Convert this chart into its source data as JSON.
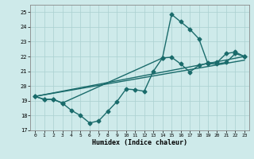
{
  "xlabel": "Humidex (Indice chaleur)",
  "xlim": [
    -0.5,
    23.5
  ],
  "ylim": [
    17,
    25.5
  ],
  "yticks": [
    17,
    18,
    19,
    20,
    21,
    22,
    23,
    24,
    25
  ],
  "xticks": [
    0,
    1,
    2,
    3,
    4,
    5,
    6,
    7,
    8,
    9,
    10,
    11,
    12,
    13,
    14,
    15,
    16,
    17,
    18,
    19,
    20,
    21,
    22,
    23
  ],
  "bg_color": "#ceeaea",
  "grid_color": "#aad0d0",
  "line_color": "#1a6b6b",
  "line1_x": [
    0,
    1,
    2,
    3,
    4,
    5,
    6,
    7,
    8,
    9,
    10,
    11,
    12,
    13,
    14,
    15,
    16,
    17,
    18,
    19,
    20,
    21,
    22,
    23
  ],
  "line1_y": [
    19.3,
    19.1,
    19.1,
    18.85,
    18.35,
    18.0,
    17.5,
    17.65,
    18.3,
    18.95,
    19.8,
    19.75,
    19.65,
    21.0,
    21.9,
    21.95,
    21.5,
    20.95,
    21.4,
    21.55,
    21.6,
    22.2,
    22.3,
    22.0
  ],
  "line2_x": [
    0,
    1,
    2,
    3,
    14,
    15,
    16,
    17,
    18,
    19,
    20,
    21,
    22,
    23
  ],
  "line2_y": [
    19.3,
    19.1,
    19.1,
    18.85,
    21.9,
    24.85,
    24.35,
    23.85,
    23.2,
    21.5,
    21.5,
    21.6,
    22.2,
    22.0
  ],
  "line3_x": [
    0,
    23
  ],
  "line3_y": [
    19.3,
    22.0
  ],
  "line4_x": [
    0,
    23
  ],
  "line4_y": [
    19.3,
    21.75
  ]
}
